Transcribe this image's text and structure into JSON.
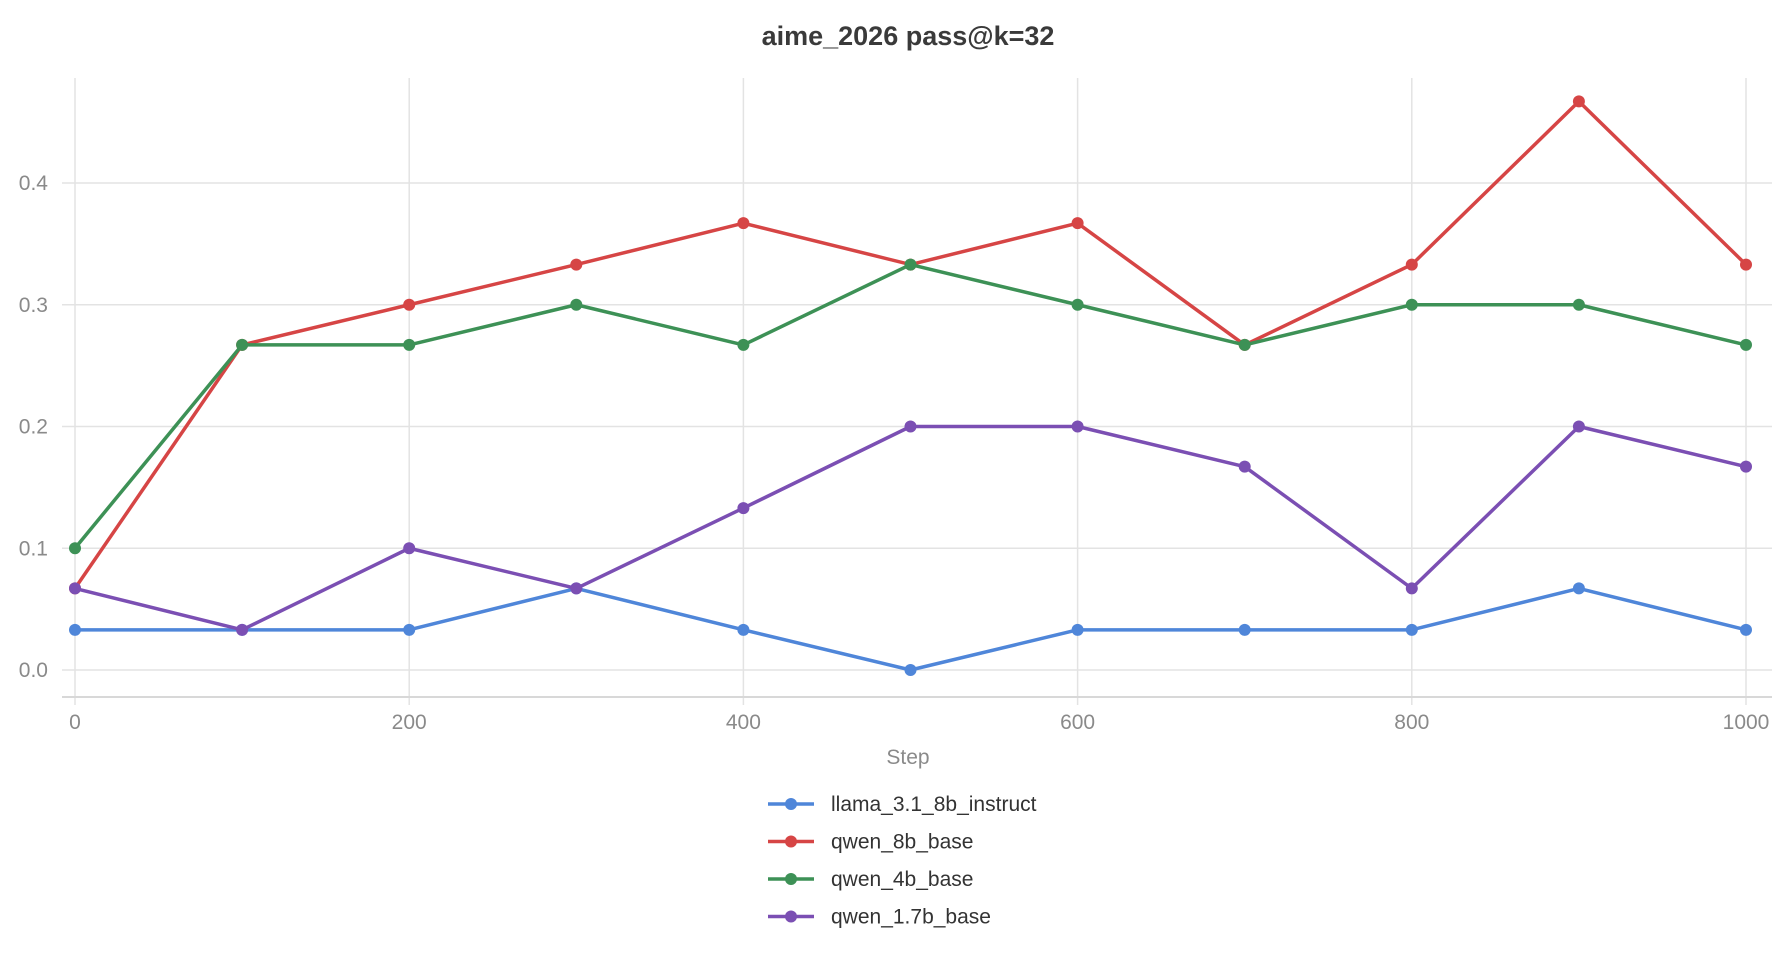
{
  "chart_data": {
    "type": "line",
    "title": "aime_2026 pass@k=32",
    "xlabel": "Step",
    "ylabel": "",
    "x": [
      0,
      100,
      200,
      300,
      400,
      500,
      600,
      700,
      800,
      900,
      1000
    ],
    "xlim": [
      0,
      1000
    ],
    "ylim": [
      0,
      0.4
    ],
    "x_ticks": [
      "0",
      "200",
      "400",
      "600",
      "800",
      "1000"
    ],
    "y_ticks": [
      "0.0",
      "0.1",
      "0.2",
      "0.3",
      "0.4"
    ],
    "grid": true,
    "legend_position": "bottom-center",
    "series": [
      {
        "name": "llama_3.1_8b_instruct",
        "color": "#4f86d9",
        "values": [
          0.033,
          0.033,
          0.033,
          0.067,
          0.033,
          0.0,
          0.033,
          0.033,
          0.033,
          0.067,
          0.033
        ]
      },
      {
        "name": "qwen_8b_base",
        "color": "#d64545",
        "values": [
          0.067,
          0.267,
          0.3,
          0.333,
          0.367,
          0.333,
          0.367,
          0.267,
          0.333,
          0.467,
          0.333
        ]
      },
      {
        "name": "qwen_4b_base",
        "color": "#3d9156",
        "values": [
          0.1,
          0.267,
          0.267,
          0.3,
          0.267,
          0.333,
          0.3,
          0.267,
          0.3,
          0.3,
          0.267
        ]
      },
      {
        "name": "qwen_1.7b_base",
        "color": "#7b4fb3",
        "values": [
          0.067,
          0.033,
          0.1,
          0.067,
          0.133,
          0.2,
          0.2,
          0.167,
          0.067,
          0.2,
          0.167
        ]
      }
    ]
  }
}
